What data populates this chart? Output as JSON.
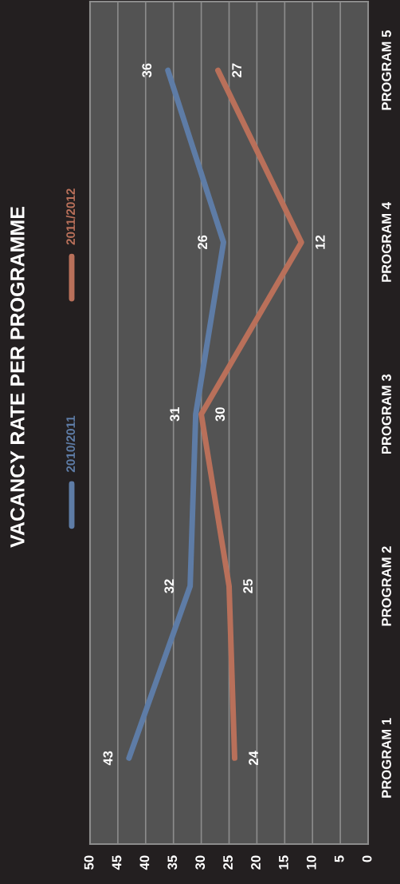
{
  "chart_data": {
    "type": "line",
    "title": "VACANCY RATE PER PROGRAMME",
    "orientation": "horizontal",
    "categories": [
      "PROGRAM 5",
      "PROGRAM 4",
      "PROGRAM 3",
      "PROGRAM 2",
      "PROGRAM 1"
    ],
    "series": [
      {
        "name": "2010/2011",
        "color": "#5e7ca6",
        "values": [
          36,
          26,
          31,
          32,
          43
        ]
      },
      {
        "name": "2011/2012",
        "color": "#b9705a",
        "values": [
          27,
          12,
          30,
          25,
          24
        ]
      }
    ],
    "xlim": [
      50,
      0
    ],
    "xticks": [
      0,
      5,
      10,
      15,
      20,
      25,
      30,
      35,
      40,
      45,
      50
    ],
    "grid": "x",
    "legend": "left",
    "data_labels": true
  }
}
